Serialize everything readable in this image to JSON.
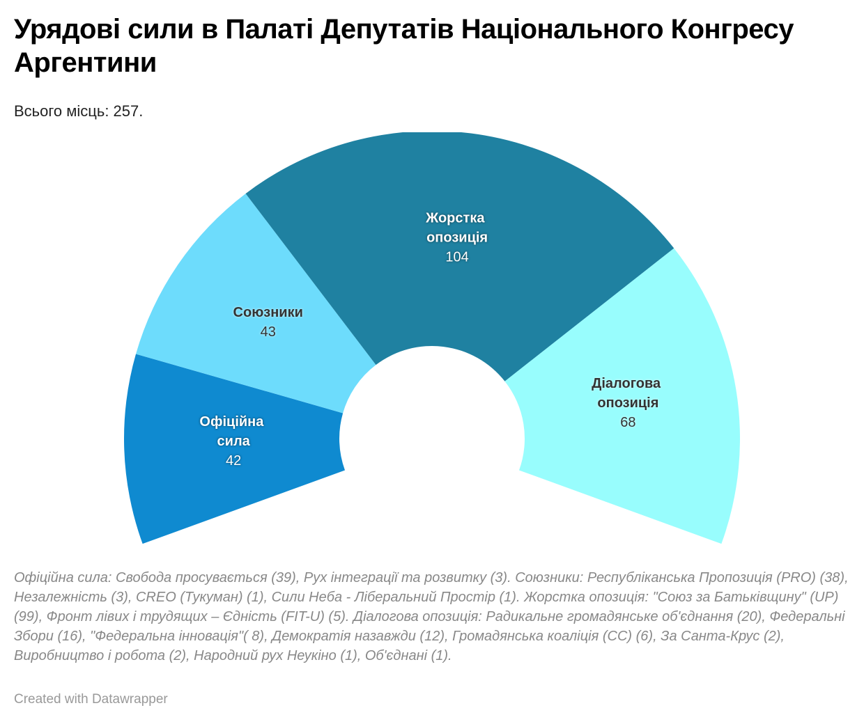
{
  "chart_data": {
    "type": "semi-donut",
    "title": "Урядові сили в Палаті Депутатів Національного Конгресу Аргентини",
    "subtitle": "Всього місць: 257.",
    "categories": [
      "Офіційна сила",
      "Союзники",
      "Жорстка опозиція",
      "Діалогова опозиція"
    ],
    "values": [
      42,
      43,
      104,
      68
    ],
    "colors": [
      "#0f8ad0",
      "#6ddcfc",
      "#1f81a1",
      "#98fdfd"
    ],
    "notes": "Офіційна сила: Свобода просувається (39), Рух інтеграції та розвитку (3). Союзники: Республіканська Пропозиція (PRO) (38), Незалежність (3), CREO (Тукуман) (1), Сили Неба - Ліберальний Простір (1). Жорстка опозиція: \"Союз за Батьківщину\" (UP) (99), Фронт лівих і трудящих – Єдність (FIT-U) (5). Діалогова опозиція: Радикальне громадянське об'єднання (20), Федеральні Збори (16), \"Федеральна інновація\"( 8), Демократія назавжди (12), Громадянська коаліція (CC) (6), За Санта-Крус (2), Виробництво і робота (2), Народний рух Неукіно (1), Об'єднані (1).",
    "credit": "Created with Datawrapper"
  }
}
